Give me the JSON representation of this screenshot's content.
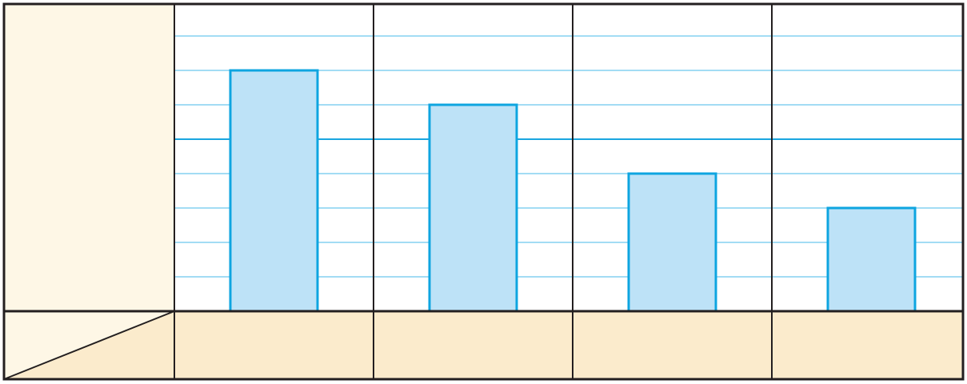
{
  "chart_data": {
    "type": "bar",
    "categories": [
      "",
      "",
      "",
      ""
    ],
    "values": [
      7,
      6,
      4,
      3
    ],
    "ylim": [
      0,
      8
    ],
    "major_gridline_at": 5,
    "grid": true,
    "title": "",
    "xlabel": "",
    "ylabel": "",
    "legend": "none"
  },
  "colors": {
    "bar_fill": "#bde2f7",
    "bar_stroke": "#0ea5e0",
    "grid_minor": "#6cc6ee",
    "grid_major": "#1aa6e0",
    "frame": "#231f20",
    "left_panel_bg": "#fef7e6",
    "label_row_bg": "#fbebcc"
  }
}
